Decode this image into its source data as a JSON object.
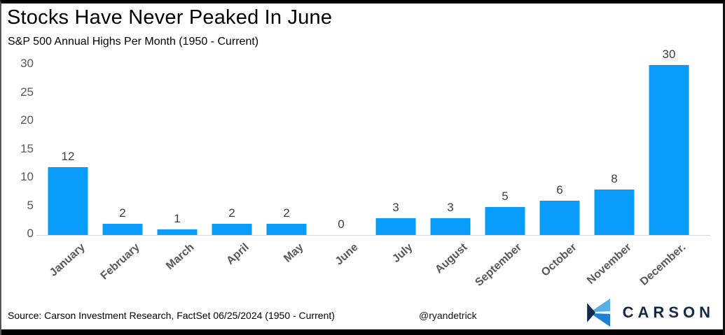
{
  "header": {
    "title": "Stocks Have Never Peaked In June",
    "subtitle": "S&P 500 Annual Highs Per Month (1950 - Current)"
  },
  "chart_data": {
    "type": "bar",
    "title": "Stocks Have Never Peaked In June",
    "subtitle": "S&P 500 Annual Highs Per Month (1950 - Current)",
    "categories": [
      "January",
      "February",
      "March",
      "April",
      "May",
      "June",
      "July",
      "August",
      "September",
      "October",
      "November",
      "December."
    ],
    "values": [
      12,
      2,
      1,
      2,
      2,
      0,
      3,
      3,
      5,
      6,
      8,
      30
    ],
    "xlabel": "",
    "ylabel": "",
    "ylim": [
      0,
      30
    ],
    "yticks": [
      0,
      5,
      10,
      15,
      20,
      25,
      30
    ],
    "grid": false,
    "legend": false,
    "data_labels": true,
    "bar_color": "#0a9cfa"
  },
  "footer": {
    "source": "Source: Carson Investment Research, FactSet 06/25/2024 (1950 - Current)",
    "handle": "@ryandetrick",
    "logo_text": "CARSON"
  },
  "colors": {
    "bar": "#0a9cfa",
    "axis_text": "#595959",
    "value_text": "#404040",
    "baseline": "#d9d9d9",
    "frame": "#000000",
    "logo_navy": "#13294b",
    "logo_light_blue": "#55b0e4",
    "logo_mid_blue": "#1e82d2"
  }
}
